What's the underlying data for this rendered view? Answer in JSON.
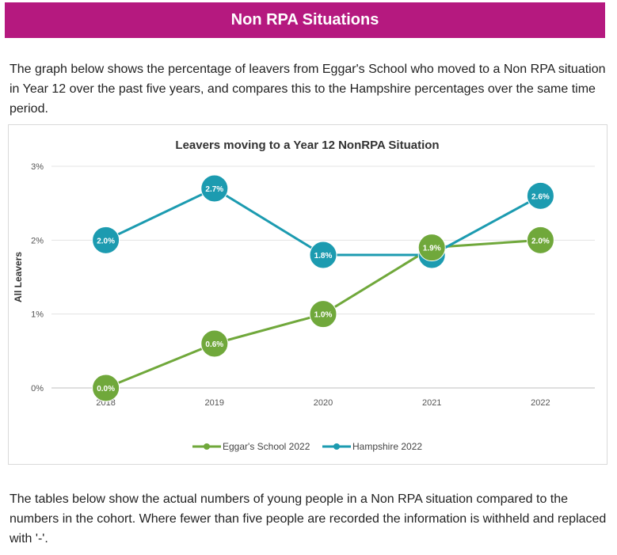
{
  "header": {
    "title": "Non RPA Situations"
  },
  "intro_text": "The graph below shows the percentage of leavers from Eggar's School who moved to a Non RPA situation in Year 12 over the past five years, and compares this to the Hampshire percentages over the same time period.",
  "outro_text": "The tables below show the actual numbers of young people in a Non RPA situation compared to the numbers in the cohort. Where fewer than five people are recorded the information is withheld and replaced with '-'.",
  "chart_data": {
    "type": "line",
    "title": "Leavers moving to a Year 12 NonRPA Situation",
    "xlabel": "",
    "ylabel": "All Leavers",
    "x": [
      "2018",
      "2019",
      "2020",
      "2021",
      "2022"
    ],
    "ylim": [
      0,
      3
    ],
    "yticks": [
      "0%",
      "1%",
      "2%",
      "3%"
    ],
    "grid": true,
    "legend_position": "bottom",
    "series": [
      {
        "name": "Eggar's School 2022",
        "color": "#70a83b",
        "values": [
          0.0,
          0.6,
          1.0,
          1.9,
          2.0
        ],
        "labels": [
          "0.0%",
          "0.6%",
          "1.0%",
          "1.9%",
          "2.0%"
        ]
      },
      {
        "name": "Hampshire 2022",
        "color": "#1c9bb0",
        "values": [
          2.0,
          2.7,
          1.8,
          1.8,
          2.6
        ],
        "labels": [
          "2.0%",
          "2.7%",
          "1.8%",
          "1.8%",
          "2.6%"
        ]
      }
    ]
  }
}
